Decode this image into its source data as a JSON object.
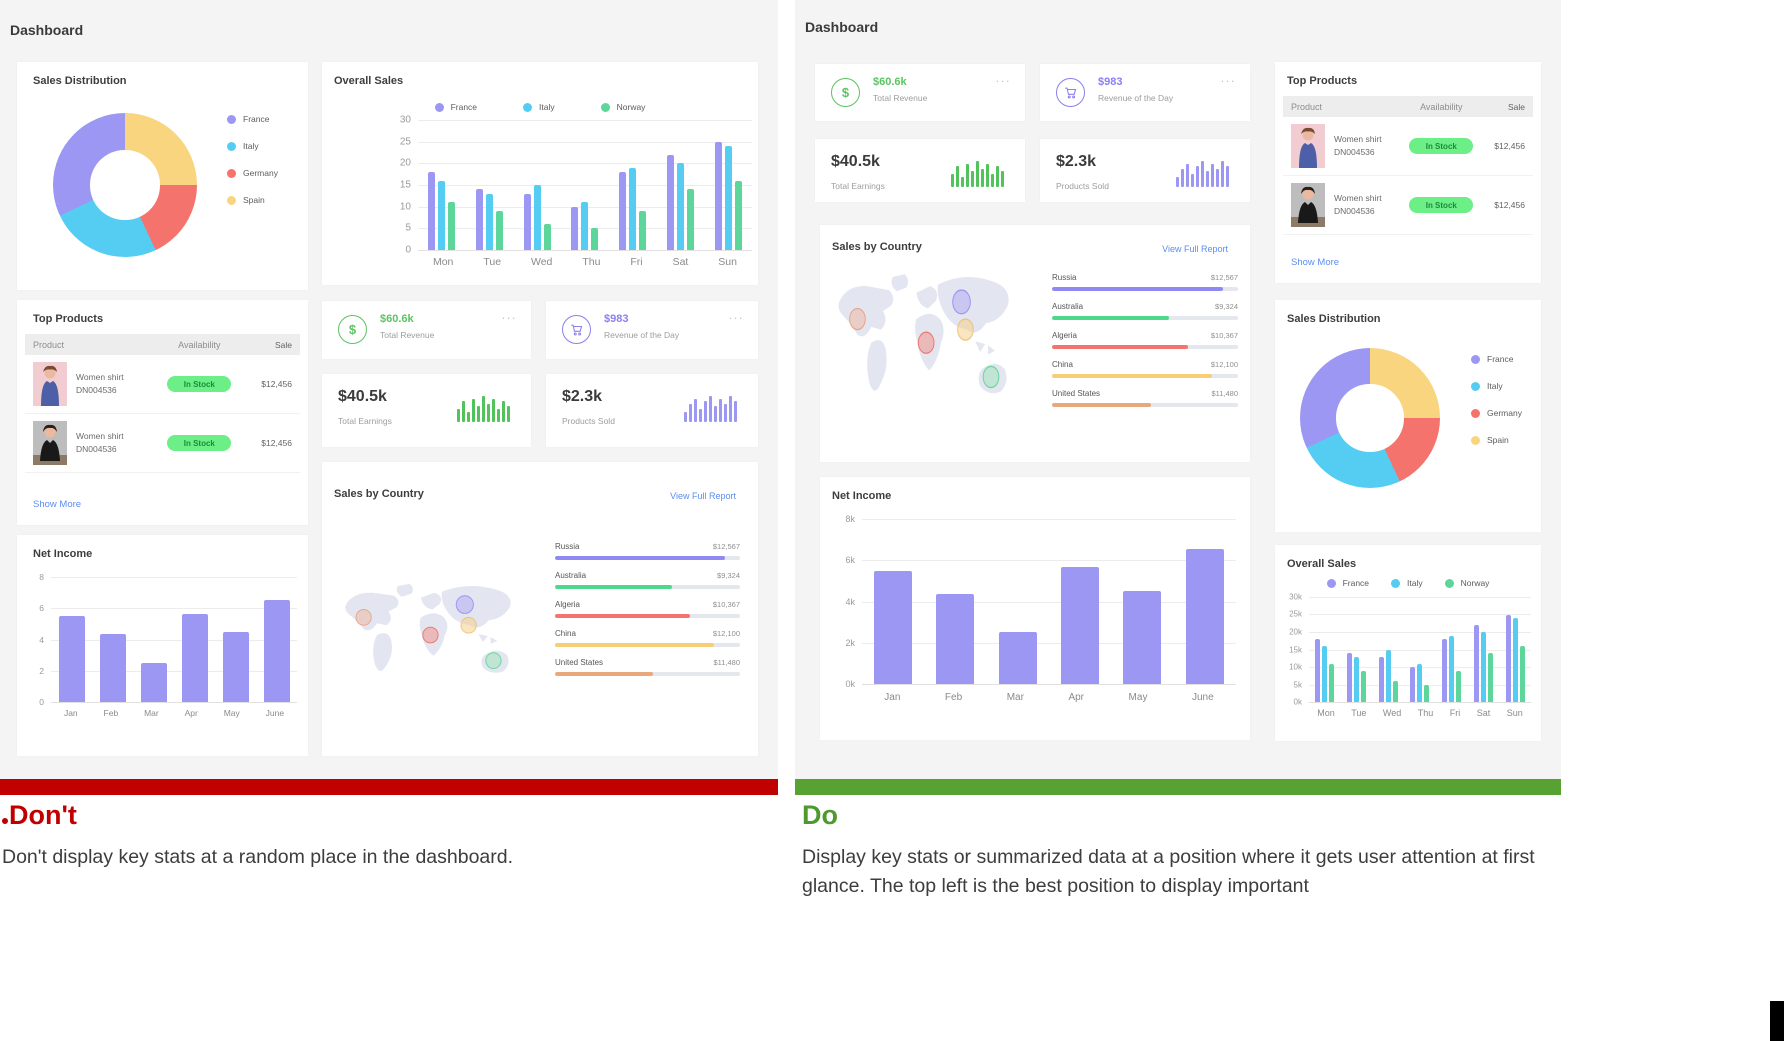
{
  "dashboard_title": "Dashboard",
  "captions": {
    "dont_title": "Don't",
    "dont_text": "Don't display key stats at a random place in the dashboard.",
    "do_title": "Do",
    "do_text": "Display key stats or summarized data at a position where it gets user attention at first glance. The top left is the best position to display important"
  },
  "colors": {
    "rule_red": "#c10000",
    "rule_green": "#57a233",
    "link_blue": "#5b8df2",
    "stat_green": "#5bc463",
    "stat_purple": "#8b7ff0"
  },
  "stats": {
    "total_revenue": {
      "value": "$60.6k",
      "label": "Total Revenue",
      "color": "#5bc463",
      "icon": "dollar-circle-icon",
      "menu": "..."
    },
    "revenue_of_day": {
      "value": "$983",
      "label": "Revenue of the Day",
      "color": "#8b7ff0",
      "icon": "cart-circle-icon",
      "menu": "..."
    },
    "total_earnings": {
      "value": "$40.5k",
      "label": "Total Earnings",
      "spark_color": "#52c25a",
      "spark": [
        5,
        8,
        4,
        9,
        6,
        10,
        7,
        9,
        5,
        8,
        6
      ]
    },
    "products_sold": {
      "value": "$2.3k",
      "label": "Products Sold",
      "spark_color": "#9b97f2",
      "spark": [
        4,
        7,
        9,
        5,
        8,
        10,
        6,
        9,
        7,
        10,
        8
      ]
    }
  },
  "top_products": {
    "title": "Top Products",
    "columns": [
      "Product",
      "Availability",
      "Sale"
    ],
    "show_more": "Show More",
    "rows": [
      {
        "name": "Women shirt",
        "sku": "DN004536",
        "availability": "In Stock",
        "sale": "$12,456",
        "image": "woman-blue-shirt"
      },
      {
        "name": "Women shirt",
        "sku": "DN004536",
        "availability": "In Stock",
        "sale": "$12,456",
        "image": "woman-black-shirt"
      }
    ]
  },
  "sales_by_country": {
    "title": "Sales by Country",
    "link": "View Full Report",
    "countries": [
      {
        "name": "Russia",
        "value": "$12,567",
        "pct": 92,
        "color": "#8f8af2"
      },
      {
        "name": "Australia",
        "value": "$9,324",
        "pct": 63,
        "color": "#4ed98a"
      },
      {
        "name": "Algeria",
        "value": "$10,367",
        "pct": 73,
        "color": "#f4736d"
      },
      {
        "name": "China",
        "value": "$12,100",
        "pct": 86,
        "color": "#f7ce76"
      },
      {
        "name": "United States",
        "value": "$11,480",
        "pct": 53,
        "color": "#e8a87c"
      }
    ]
  },
  "chart_data": [
    {
      "id": "sales_distribution",
      "type": "pie",
      "title": "Sales Distribution",
      "labels": [
        "France",
        "Italy",
        "Germany",
        "Spain"
      ],
      "values": [
        32,
        25,
        18,
        25
      ],
      "colors": [
        "#9b97f2",
        "#55cdf2",
        "#f4736d",
        "#f8d57e"
      ],
      "legend_position": "right",
      "donut": true
    },
    {
      "id": "overall_sales",
      "type": "bar",
      "title": "Overall Sales",
      "categories": [
        "Mon",
        "Tue",
        "Wed",
        "Thu",
        "Fri",
        "Sat",
        "Sun"
      ],
      "series": [
        {
          "name": "France",
          "color": "#9b97f2",
          "values": [
            18,
            14,
            13,
            10,
            18,
            22,
            25
          ]
        },
        {
          "name": "Italy",
          "color": "#55cdf2",
          "values": [
            16,
            13,
            15,
            11,
            19,
            20,
            24
          ]
        },
        {
          "name": "Norway",
          "color": "#5cd69a",
          "values": [
            11,
            9,
            6,
            5,
            9,
            14,
            16
          ]
        }
      ],
      "ylim": [
        0,
        30
      ],
      "yticks_left_panel": [
        "30",
        "25",
        "20",
        "15",
        "10",
        "5",
        "0"
      ],
      "yticks_right_panel": [
        "30k",
        "25k",
        "20k",
        "15k",
        "10k",
        "5k",
        "0k"
      ],
      "legend_position": "top",
      "grid": true
    },
    {
      "id": "net_income",
      "type": "bar",
      "title": "Net Income",
      "categories": [
        "Jan",
        "Feb",
        "Mar",
        "Apr",
        "May",
        "June"
      ],
      "values": [
        5.5,
        4.35,
        2.5,
        5.65,
        4.5,
        6.55
      ],
      "color": "#9b97f2",
      "ylim": [
        0,
        8
      ],
      "yticks_left_panel": [
        "8",
        "6",
        "4",
        "2",
        "0"
      ],
      "yticks_right_panel": [
        "8k",
        "6k",
        "4k",
        "2k",
        "0k"
      ],
      "grid": true
    }
  ]
}
